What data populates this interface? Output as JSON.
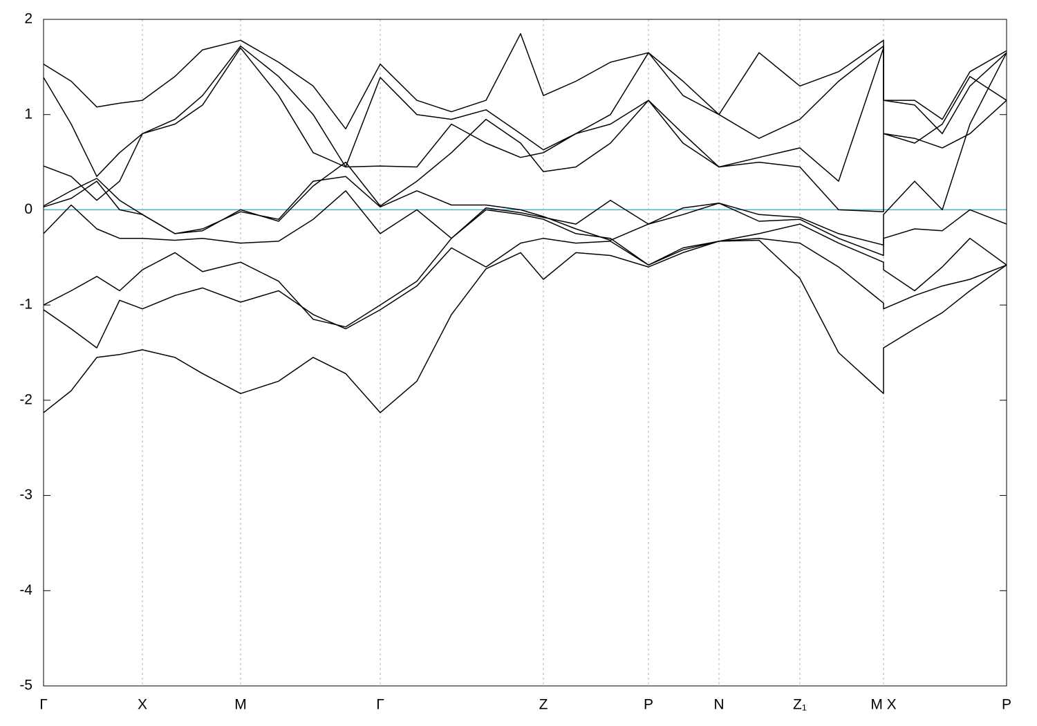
{
  "chart_data": {
    "type": "line",
    "x": [
      0,
      40,
      77,
      110,
      143,
      190,
      230,
      285,
      340,
      390,
      437,
      487,
      540,
      590,
      640,
      690,
      723,
      770,
      820,
      875,
      925,
      977,
      1035,
      1094,
      1150,
      1215,
      1215,
      1260,
      1300,
      1340,
      1393
    ],
    "xlim": [
      0,
      1393
    ],
    "xticks": [
      {
        "value": 0,
        "label": "Γ"
      },
      {
        "value": 143,
        "label": "X"
      },
      {
        "value": 285,
        "label": "M"
      },
      {
        "value": 487,
        "label": "Γ"
      },
      {
        "value": 723,
        "label": "Z"
      },
      {
        "value": 875,
        "label": "P"
      },
      {
        "value": 977,
        "label": "N"
      },
      {
        "value": 1094,
        "label": "Z₁"
      },
      {
        "value": 1215,
        "label": "M X"
      },
      {
        "value": 1393,
        "label": "P"
      }
    ],
    "ylim": [
      -5,
      2
    ],
    "yticks": [
      -5,
      -4,
      -3,
      -2,
      -1,
      0,
      1,
      2
    ],
    "grid": true,
    "reference_line": {
      "y": 0,
      "color": "#4fb0c6"
    },
    "series": [
      {
        "color": "#000000",
        "values": [
          -2.13,
          -1.9,
          -1.55,
          -1.52,
          -1.47,
          -1.55,
          -1.72,
          -1.93,
          -1.8,
          -1.55,
          -1.72,
          -2.13,
          -1.8,
          -1.1,
          -0.62,
          -0.45,
          -0.73,
          -0.45,
          -0.48,
          -0.6,
          -0.45,
          -0.33,
          -0.32,
          -0.72,
          -1.5,
          -1.93,
          -1.45,
          -1.25,
          -1.08,
          -0.85,
          -0.58
        ]
      },
      {
        "color": "#000000",
        "values": [
          -1.05,
          -1.25,
          -1.45,
          -0.95,
          -1.04,
          -0.9,
          -0.82,
          -0.97,
          -0.85,
          -1.1,
          -1.25,
          -1.05,
          -0.8,
          -0.4,
          -0.6,
          -0.35,
          -0.3,
          -0.35,
          -0.33,
          -0.58,
          -0.42,
          -0.33,
          -0.3,
          -0.35,
          -0.6,
          -0.98,
          -1.04,
          -0.9,
          -0.8,
          -0.73,
          -0.58
        ]
      },
      {
        "color": "#000000",
        "values": [
          -1.0,
          -0.85,
          -0.7,
          -0.85,
          -0.63,
          -0.45,
          -0.65,
          -0.55,
          -0.75,
          -1.15,
          -1.23,
          -1.0,
          -0.75,
          -0.3,
          0.0,
          -0.05,
          -0.1,
          -0.25,
          -0.3,
          -0.58,
          -0.4,
          -0.33,
          -0.25,
          -0.15,
          -0.35,
          -0.55,
          -0.63,
          -0.85,
          -0.6,
          -0.3,
          -0.58
        ]
      },
      {
        "color": "#000000",
        "values": [
          -0.25,
          0.05,
          -0.2,
          -0.3,
          -0.3,
          -0.32,
          -0.3,
          -0.35,
          -0.33,
          -0.1,
          0.2,
          -0.25,
          0.0,
          -0.3,
          0.02,
          -0.03,
          -0.08,
          -0.15,
          0.1,
          -0.15,
          -0.05,
          0.07,
          -0.12,
          -0.1,
          -0.3,
          -0.48,
          -0.3,
          -0.2,
          -0.22,
          0.0,
          -0.15
        ]
      },
      {
        "color": "#000000",
        "values": [
          0.03,
          0.12,
          0.3,
          0.0,
          -0.05,
          -0.25,
          -0.2,
          -0.02,
          -0.1,
          0.3,
          0.35,
          0.03,
          0.2,
          0.05,
          0.05,
          0.0,
          -0.07,
          -0.2,
          -0.32,
          -0.15,
          0.02,
          0.07,
          -0.05,
          -0.08,
          -0.25,
          -0.37,
          -0.05,
          0.3,
          0.0,
          0.9,
          1.65
        ]
      },
      {
        "color": "#000000",
        "values": [
          0.04,
          0.2,
          0.33,
          0.1,
          -0.05,
          -0.25,
          -0.22,
          0.0,
          -0.12,
          0.25,
          0.5,
          0.04,
          0.3,
          0.6,
          0.95,
          0.7,
          0.4,
          0.45,
          0.7,
          1.15,
          0.7,
          0.45,
          0.5,
          0.45,
          0.0,
          -0.02,
          0.8,
          0.75,
          0.65,
          0.8,
          1.15
        ]
      },
      {
        "color": "#000000",
        "values": [
          0.46,
          0.35,
          0.1,
          0.3,
          0.8,
          0.9,
          1.1,
          1.7,
          1.2,
          0.6,
          0.45,
          0.46,
          0.45,
          0.9,
          0.7,
          0.55,
          0.6,
          0.8,
          0.9,
          1.15,
          0.8,
          0.45,
          0.55,
          0.65,
          0.3,
          1.7,
          0.8,
          0.7,
          0.9,
          1.4,
          1.15
        ]
      },
      {
        "color": "#000000",
        "values": [
          1.39,
          0.9,
          0.35,
          0.6,
          0.8,
          0.95,
          1.2,
          1.72,
          1.4,
          1.0,
          0.45,
          1.39,
          1.0,
          0.95,
          1.05,
          0.8,
          0.63,
          0.8,
          1.0,
          1.65,
          1.2,
          1.0,
          0.75,
          0.95,
          1.35,
          1.72,
          1.15,
          1.1,
          0.8,
          1.3,
          1.65
        ]
      },
      {
        "color": "#000000",
        "values": [
          1.53,
          1.35,
          1.08,
          1.12,
          1.15,
          1.4,
          1.68,
          1.78,
          1.55,
          1.3,
          0.85,
          1.53,
          1.15,
          1.03,
          1.15,
          1.85,
          1.2,
          1.35,
          1.55,
          1.65,
          1.35,
          1.0,
          1.65,
          1.3,
          1.45,
          1.78,
          1.15,
          1.15,
          0.95,
          1.45,
          1.67
        ]
      }
    ]
  }
}
